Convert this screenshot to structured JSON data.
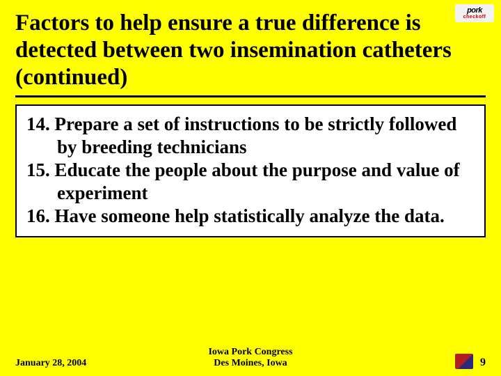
{
  "logo_top": {
    "line1": "pork",
    "line2": "checkoff"
  },
  "title": "Factors to help ensure a true difference is detected between two insemination catheters (continued)",
  "items": [
    "14. Prepare a set of instructions to be strictly followed by breeding technicians",
    "15. Educate the people about the purpose and value of experiment",
    "16. Have someone help statistically analyze the data."
  ],
  "footer": {
    "date": "January 28, 2004",
    "event_line1": "Iowa Pork Congress",
    "event_line2": "Des Moines, Iowa",
    "page_number": "9"
  },
  "colors": {
    "slide_bg": "#ffff00",
    "box_bg": "#ffffff",
    "text": "#000000",
    "rule": "#000000"
  }
}
